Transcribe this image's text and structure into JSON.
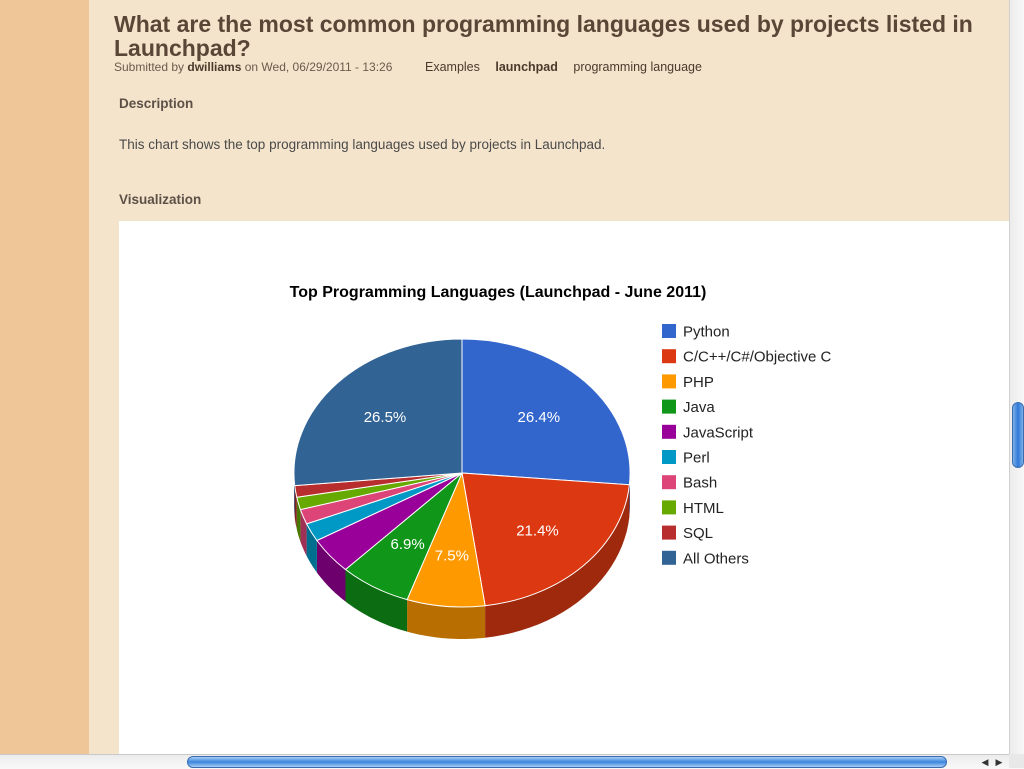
{
  "page": {
    "title": "What are the most common programming languages used by projects listed in Launchpad?",
    "submitted_prefix": "Submitted by ",
    "author": "dwilliams",
    "submitted_suffix": " on Wed, 06/29/2011 - 13:26",
    "tags": [
      "Examples",
      "launchpad",
      "programming language"
    ],
    "description_label": "Description",
    "description_text": "This chart shows the top programming languages used by projects in Launchpad.",
    "visualization_label": "Visualization"
  },
  "chart_data": {
    "type": "pie",
    "title": "Top Programming Languages (Launchpad - June 2011)",
    "three_d": true,
    "legend_position": "right",
    "categories": [
      "Python",
      "C/C++/C#/Objective C",
      "PHP",
      "Java",
      "JavaScript",
      "Perl",
      "Bash",
      "HTML",
      "SQL",
      "All Others"
    ],
    "values": [
      26.4,
      21.4,
      7.5,
      6.9,
      4.4,
      2.2,
      1.8,
      1.5,
      1.4,
      26.5
    ],
    "data_labels": [
      "26.4%",
      "21.4%",
      "7.5%",
      "6.9%",
      "",
      "",
      "",
      "",
      "",
      "26.5%"
    ],
    "colors": [
      "#3366cc",
      "#dc3912",
      "#ff9900",
      "#109618",
      "#990099",
      "#0099c6",
      "#dd4477",
      "#66aa00",
      "#b82e2e",
      "#316395"
    ]
  },
  "scrollbars": {
    "left_arrow": "◀",
    "right_arrow": "▶"
  }
}
